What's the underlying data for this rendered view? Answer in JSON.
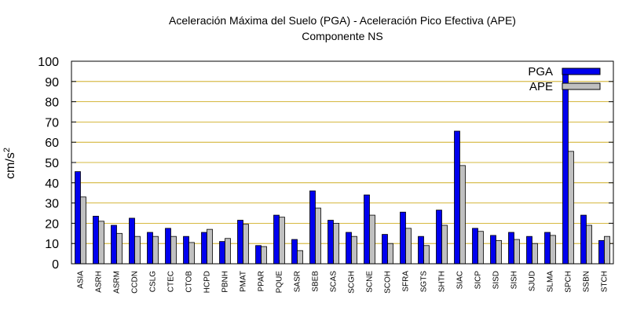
{
  "chart_data": {
    "type": "bar",
    "title": "Aceleración Máxima del Suelo (PGA) -  Aceleración Pico Efectiva (APE)",
    "subtitle": "Componente NS",
    "ylabel": "cm/s",
    "ylabel_sup": "2",
    "xlabel": "",
    "ylim": [
      0,
      100
    ],
    "yticks": [
      "0",
      "10",
      "20",
      "30",
      "40",
      "50",
      "60",
      "70",
      "80",
      "90",
      "100"
    ],
    "grid": true,
    "legend_position": "top-right",
    "categories": [
      "ASIA",
      "ASRH",
      "ASRM",
      "CCDN",
      "CSLG",
      "CTEC",
      "CTOB",
      "HCPD",
      "PBNH",
      "PMAT",
      "PPAR",
      "PQUE",
      "SASR",
      "SBEB",
      "SCAS",
      "SCGH",
      "SCNE",
      "SCOH",
      "SFRA",
      "SGTS",
      "SHTH",
      "SIAC",
      "SICP",
      "SISD",
      "SISH",
      "SJUD",
      "SLMA",
      "SPCH",
      "SSBN",
      "STCH"
    ],
    "series": [
      {
        "name": "PGA",
        "color": "#0000ee",
        "values": [
          45.5,
          23.5,
          19,
          22.5,
          15.5,
          17.5,
          13.5,
          15.5,
          11,
          21.5,
          9,
          24,
          12,
          36,
          21.5,
          15.5,
          34,
          14.5,
          25.5,
          13.5,
          26.5,
          65.5,
          17.5,
          14,
          15.5,
          13.5,
          15.5,
          93.5,
          24,
          11.5
        ]
      },
      {
        "name": "APE",
        "color": "#c0c0c0",
        "values": [
          33,
          21,
          15,
          13.5,
          13.5,
          13.5,
          10.5,
          17,
          12.5,
          19.5,
          8.5,
          23,
          6.5,
          27.5,
          20,
          13.5,
          24,
          10,
          17.5,
          9,
          19,
          48.5,
          16,
          11.5,
          12,
          10,
          14,
          55.5,
          19,
          13.5
        ]
      }
    ]
  }
}
